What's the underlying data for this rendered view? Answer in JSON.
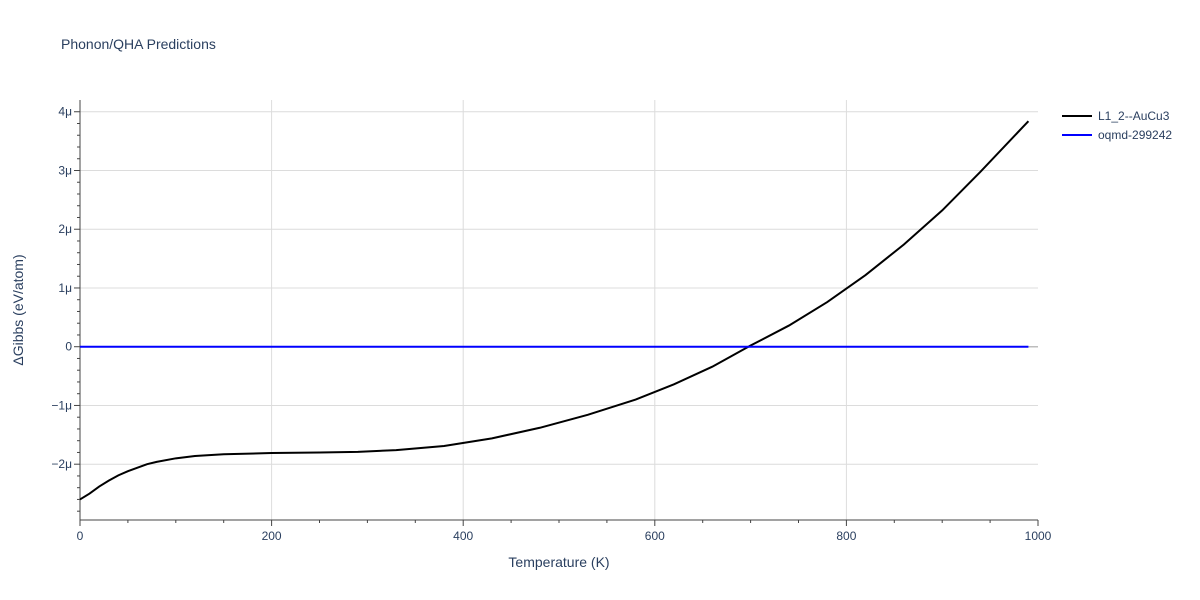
{
  "chart_data": {
    "type": "line",
    "title": "Phonon/QHA Predictions",
    "xlabel": "Temperature (K)",
    "ylabel": "ΔGibbs (eV/atom)",
    "xlim": [
      0,
      1000
    ],
    "ylim": [
      -2.95e-06,
      4.2e-06
    ],
    "x_ticks": [
      0,
      200,
      400,
      600,
      800,
      1000
    ],
    "x_tick_labels": [
      "0",
      "200",
      "400",
      "600",
      "800",
      "1000"
    ],
    "y_ticks": [
      -2e-06,
      -1e-06,
      0,
      1e-06,
      2e-06,
      3e-06,
      4e-06
    ],
    "y_tick_labels": [
      "−2μ",
      "−1μ",
      "0",
      "1μ",
      "2μ",
      "3μ",
      "4μ"
    ],
    "grid": true,
    "legend_position": "top-right",
    "series": [
      {
        "name": "L1_2--AuCu3",
        "color": "#000000",
        "x": [
          0,
          10,
          20,
          30,
          40,
          50,
          60,
          70,
          80,
          100,
          120,
          150,
          200,
          250,
          290,
          330,
          380,
          430,
          480,
          530,
          580,
          620,
          660,
          700,
          740,
          780,
          820,
          860,
          900,
          940,
          990
        ],
        "y": [
          -2.6e-06,
          -2.5e-06,
          -2.38e-06,
          -2.28e-06,
          -2.19e-06,
          -2.12e-06,
          -2.06e-06,
          -2e-06,
          -1.96e-06,
          -1.9e-06,
          -1.86e-06,
          -1.83e-06,
          -1.81e-06,
          -1.8e-06,
          -1.79e-06,
          -1.76e-06,
          -1.69e-06,
          -1.56e-06,
          -1.38e-06,
          -1.16e-06,
          -9e-07,
          -6.4e-07,
          -3.4e-07,
          2e-08,
          3.6e-07,
          7.6e-07,
          1.22e-06,
          1.74e-06,
          2.32e-06,
          2.98e-06,
          3.84e-06
        ]
      },
      {
        "name": "oqmd-299242",
        "color": "#0000ff",
        "x": [
          0,
          990
        ],
        "y": [
          0,
          0
        ]
      }
    ]
  }
}
